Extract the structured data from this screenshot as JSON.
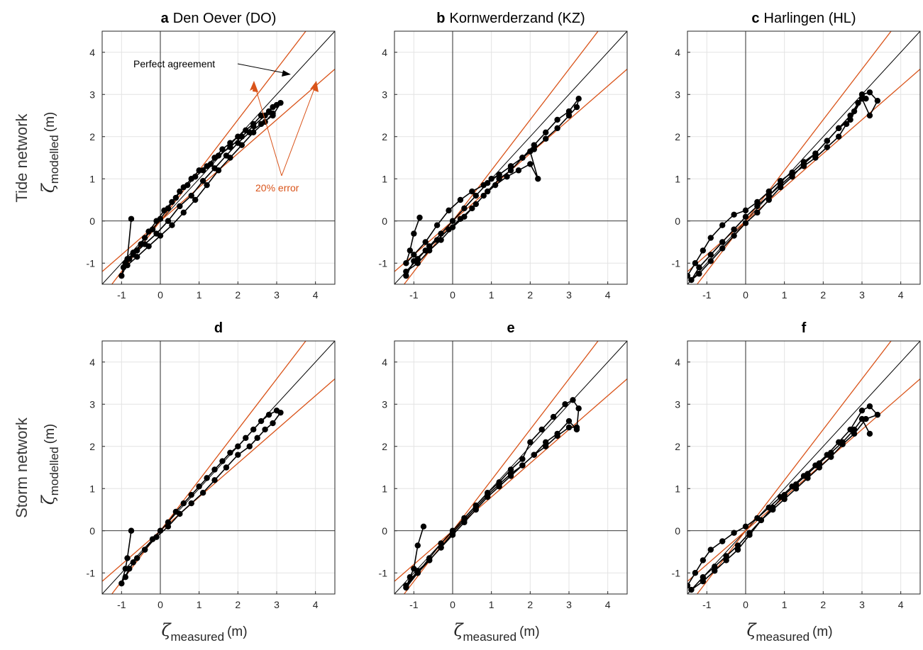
{
  "figure": {
    "row_labels": [
      "Tide network",
      "Storm network"
    ],
    "ylabel": {
      "symbol": "ζ",
      "subscript": "modelled",
      "unit": "(m)"
    },
    "xlabel": {
      "symbol": "ζ",
      "subscript": "measured",
      "unit": "(m)"
    },
    "annotations": {
      "perfect": "Perfect agreement",
      "error": "20% error"
    },
    "colors": {
      "data": "#000000",
      "perfect_line": "#000000",
      "error_lines": "#d95319",
      "grid": "#e3e3e3"
    }
  },
  "chart_data": [
    {
      "type": "line",
      "letter": "a",
      "title": "Den Oever (DO)",
      "row": "Tide network",
      "xlim": [
        -1.5,
        4.5
      ],
      "ylim": [
        -1.5,
        4.5
      ],
      "xticks": [
        -1,
        0,
        1,
        2,
        3,
        4
      ],
      "yticks": [
        -1,
        0,
        1,
        2,
        3,
        4
      ],
      "tick_labels": [
        "-1",
        "0",
        "1",
        "2",
        "3",
        "4"
      ],
      "grid": true,
      "reference_lines": {
        "perfect_slope": 1.0,
        "error_slopes": [
          1.2,
          0.8
        ]
      },
      "series": [
        {
          "x": [
            -0.75,
            -0.85,
            -0.9,
            -0.95,
            -1.0,
            -0.8,
            -0.6,
            -0.4,
            -0.2,
            0.0,
            0.2,
            0.4,
            0.6,
            0.8,
            1.0,
            1.2,
            1.4,
            1.6,
            1.8,
            2.0,
            2.2,
            2.4,
            2.6,
            2.8,
            2.9,
            3.0,
            3.1,
            2.9,
            2.6,
            2.3,
            2.0,
            1.7,
            1.4,
            1.1,
            0.8,
            0.5,
            0.2,
            -0.1,
            -0.4,
            -0.7,
            -0.9,
            -0.7,
            -0.5,
            -0.3,
            -0.1,
            0.1,
            0.3,
            0.5,
            0.7,
            0.9,
            1.1,
            1.3,
            1.5,
            1.8,
            2.1,
            2.4,
            2.7,
            2.9,
            2.7,
            2.4,
            2.1,
            1.8,
            1.5,
            1.2,
            0.9,
            0.6,
            0.3,
            0.0,
            -0.3,
            -0.6,
            -0.85
          ],
          "y": [
            0.05,
            -0.9,
            -1.0,
            -1.1,
            -1.3,
            -0.9,
            -0.7,
            -0.4,
            -0.2,
            0.05,
            0.3,
            0.55,
            0.8,
            1.0,
            1.2,
            1.3,
            1.5,
            1.7,
            1.85,
            2.0,
            2.15,
            2.3,
            2.5,
            2.6,
            2.7,
            2.75,
            2.8,
            2.5,
            2.3,
            2.1,
            1.85,
            1.55,
            1.25,
            0.95,
            0.6,
            0.35,
            0.0,
            -0.3,
            -0.55,
            -0.8,
            -1.0,
            -0.75,
            -0.55,
            -0.25,
            0.0,
            0.25,
            0.45,
            0.7,
            0.85,
            1.05,
            1.2,
            1.35,
            1.55,
            1.75,
            2.0,
            2.25,
            2.5,
            2.55,
            2.35,
            2.1,
            1.8,
            1.5,
            1.2,
            0.85,
            0.5,
            0.2,
            -0.1,
            -0.35,
            -0.6,
            -0.85,
            -1.05
          ]
        }
      ]
    },
    {
      "type": "line",
      "letter": "b",
      "title": "Kornwerderzand (KZ)",
      "row": "Tide network",
      "xlim": [
        -1.5,
        4.5
      ],
      "ylim": [
        -1.5,
        4.5
      ],
      "xticks": [
        -1,
        0,
        1,
        2,
        3,
        4
      ],
      "yticks": [
        -1,
        0,
        1,
        2,
        3,
        4
      ],
      "tick_labels": [
        "-1",
        "0",
        "1",
        "2",
        "3",
        "4"
      ],
      "grid": true,
      "reference_lines": {
        "perfect_slope": 1.0,
        "error_slopes": [
          1.2,
          0.8
        ]
      },
      "series": [
        {
          "x": [
            -0.85,
            -1.0,
            -1.1,
            -1.2,
            -1.0,
            -0.7,
            -0.4,
            -0.1,
            0.2,
            0.5,
            0.8,
            1.0,
            1.2,
            1.5,
            1.8,
            2.1,
            2.4,
            2.7,
            3.0,
            3.2,
            3.25,
            3.0,
            2.7,
            2.4,
            2.1,
            1.8,
            1.5,
            1.2,
            0.9,
            0.6,
            0.3,
            0.0,
            -0.3,
            -0.6,
            -0.9,
            -1.2,
            -0.9,
            -0.6,
            -0.3,
            0.0,
            0.3,
            0.6,
            0.9,
            1.2,
            1.5,
            1.8,
            2.0,
            2.2,
            2.0,
            1.7,
            1.4,
            1.1,
            0.8,
            0.5,
            0.2,
            -0.1,
            -0.4,
            -0.7,
            -1.0,
            -1.2
          ],
          "y": [
            0.08,
            -0.3,
            -0.7,
            -1.0,
            -0.8,
            -0.5,
            -0.1,
            0.25,
            0.5,
            0.7,
            0.85,
            1.0,
            1.1,
            1.3,
            1.5,
            1.7,
            1.95,
            2.2,
            2.5,
            2.7,
            2.9,
            2.6,
            2.4,
            2.1,
            1.8,
            1.5,
            1.3,
            1.1,
            0.9,
            0.6,
            0.3,
            0.0,
            -0.3,
            -0.6,
            -0.9,
            -1.2,
            -1.0,
            -0.7,
            -0.45,
            -0.15,
            0.1,
            0.4,
            0.7,
            1.0,
            1.2,
            1.5,
            1.65,
            1.0,
            1.35,
            1.2,
            1.05,
            0.85,
            0.6,
            0.3,
            0.05,
            -0.2,
            -0.45,
            -0.7,
            -0.95,
            -1.3
          ]
        }
      ]
    },
    {
      "type": "line",
      "letter": "c",
      "title": "Harlingen (HL)",
      "row": "Tide network",
      "xlim": [
        -1.5,
        4.5
      ],
      "ylim": [
        -1.5,
        4.5
      ],
      "xticks": [
        -1,
        0,
        1,
        2,
        3,
        4
      ],
      "yticks": [
        -1,
        0,
        1,
        2,
        3,
        4
      ],
      "tick_labels": [
        "-1",
        "0",
        "1",
        "2",
        "3",
        "4"
      ],
      "grid": true,
      "reference_lines": {
        "perfect_slope": 1.0,
        "error_slopes": [
          1.2,
          0.8
        ]
      },
      "series": [
        {
          "x": [
            -1.5,
            -1.3,
            -1.1,
            -0.9,
            -0.6,
            -0.3,
            0.0,
            0.3,
            0.6,
            0.9,
            1.2,
            1.5,
            1.8,
            2.1,
            2.4,
            2.7,
            2.9,
            3.0,
            3.2,
            3.4,
            3.2,
            3.0,
            2.7,
            2.4,
            2.1,
            1.8,
            1.5,
            1.2,
            0.9,
            0.6,
            0.3,
            0.0,
            -0.3,
            -0.6,
            -0.9,
            -1.2,
            -1.4,
            -1.2,
            -0.9,
            -0.6,
            -0.3,
            0.0,
            0.3,
            0.6,
            0.9,
            1.2,
            1.5,
            1.8,
            2.1,
            2.4,
            2.6,
            2.8,
            3.0,
            3.1
          ],
          "y": [
            -1.3,
            -1.0,
            -0.7,
            -0.4,
            -0.1,
            0.15,
            0.25,
            0.45,
            0.7,
            0.95,
            1.15,
            1.4,
            1.6,
            1.9,
            2.2,
            2.5,
            2.8,
            3.0,
            3.05,
            2.85,
            2.5,
            2.9,
            2.4,
            2.2,
            1.9,
            1.6,
            1.35,
            1.05,
            0.8,
            0.5,
            0.2,
            -0.05,
            -0.35,
            -0.65,
            -0.95,
            -1.25,
            -1.4,
            -1.1,
            -0.8,
            -0.5,
            -0.2,
            0.1,
            0.35,
            0.6,
            0.85,
            1.1,
            1.3,
            1.5,
            1.75,
            2.0,
            2.3,
            2.6,
            2.9,
            2.9
          ]
        }
      ]
    },
    {
      "type": "line",
      "letter": "d",
      "title": "",
      "row": "Storm network",
      "xlim": [
        -1.5,
        4.5
      ],
      "ylim": [
        -1.5,
        4.5
      ],
      "xticks": [
        -1,
        0,
        1,
        2,
        3,
        4
      ],
      "yticks": [
        -1,
        0,
        1,
        2,
        3,
        4
      ],
      "tick_labels": [
        "-1",
        "0",
        "1",
        "2",
        "3",
        "4"
      ],
      "grid": true,
      "reference_lines": {
        "perfect_slope": 1.0,
        "error_slopes": [
          1.2,
          0.8
        ]
      },
      "series": [
        {
          "x": [
            -0.75,
            -0.85,
            -0.9,
            -1.0,
            -0.8,
            -0.6,
            -0.4,
            -0.2,
            0.0,
            0.2,
            0.4,
            0.6,
            0.8,
            1.0,
            1.2,
            1.4,
            1.6,
            1.8,
            2.0,
            2.2,
            2.4,
            2.6,
            2.8,
            3.0,
            3.1,
            2.9,
            2.7,
            2.5,
            2.3,
            2.0,
            1.7,
            1.4,
            1.1,
            0.8,
            0.5,
            0.2,
            -0.1,
            -0.4,
            -0.7,
            -0.9
          ],
          "y": [
            0.0,
            -0.65,
            -0.9,
            -1.25,
            -0.9,
            -0.65,
            -0.45,
            -0.2,
            0.0,
            0.2,
            0.45,
            0.65,
            0.85,
            1.05,
            1.25,
            1.45,
            1.65,
            1.85,
            2.0,
            2.2,
            2.4,
            2.6,
            2.75,
            2.85,
            2.8,
            2.55,
            2.4,
            2.2,
            2.0,
            1.8,
            1.5,
            1.2,
            0.9,
            0.65,
            0.4,
            0.1,
            -0.15,
            -0.45,
            -0.75,
            -1.1
          ]
        }
      ]
    },
    {
      "type": "line",
      "letter": "e",
      "title": "",
      "row": "Storm network",
      "xlim": [
        -1.5,
        4.5
      ],
      "ylim": [
        -1.5,
        4.5
      ],
      "xticks": [
        -1,
        0,
        1,
        2,
        3,
        4
      ],
      "yticks": [
        -1,
        0,
        1,
        2,
        3,
        4
      ],
      "tick_labels": [
        "-1",
        "0",
        "1",
        "2",
        "3",
        "4"
      ],
      "grid": true,
      "reference_lines": {
        "perfect_slope": 1.0,
        "error_slopes": [
          1.2,
          0.8
        ]
      },
      "series": [
        {
          "x": [
            -0.75,
            -0.9,
            -1.0,
            -1.1,
            -1.2,
            -0.9,
            -0.6,
            -0.3,
            0.0,
            0.3,
            0.6,
            0.9,
            1.2,
            1.5,
            1.8,
            2.0,
            2.3,
            2.6,
            2.9,
            3.1,
            3.25,
            3.2,
            3.0,
            2.7,
            2.4,
            2.1,
            1.8,
            1.5,
            1.2,
            0.9,
            0.6,
            0.3,
            0.0,
            -0.3,
            -0.6,
            -0.9,
            -1.2,
            -0.9,
            -0.6,
            -0.3,
            0.0,
            0.3,
            0.6,
            0.9,
            1.2,
            1.5,
            1.8,
            2.1,
            2.4,
            2.7,
            3.0,
            3.2
          ],
          "y": [
            0.1,
            -0.35,
            -0.9,
            -1.1,
            -1.35,
            -1.0,
            -0.65,
            -0.3,
            0.0,
            0.3,
            0.6,
            0.9,
            1.15,
            1.45,
            1.7,
            2.1,
            2.4,
            2.7,
            3.0,
            3.1,
            2.9,
            2.4,
            2.6,
            2.3,
            2.1,
            1.8,
            1.55,
            1.3,
            1.05,
            0.8,
            0.5,
            0.2,
            -0.1,
            -0.4,
            -0.7,
            -1.0,
            -1.3,
            -0.95,
            -0.7,
            -0.4,
            -0.05,
            0.25,
            0.55,
            0.85,
            1.1,
            1.35,
            1.55,
            1.8,
            2.0,
            2.25,
            2.45,
            2.45
          ]
        }
      ]
    },
    {
      "type": "line",
      "letter": "f",
      "title": "",
      "row": "Storm network",
      "xlim": [
        -1.5,
        4.5
      ],
      "ylim": [
        -1.5,
        4.5
      ],
      "xticks": [
        -1,
        0,
        1,
        2,
        3,
        4
      ],
      "yticks": [
        -1,
        0,
        1,
        2,
        3,
        4
      ],
      "tick_labels": [
        "-1",
        "0",
        "1",
        "2",
        "3",
        "4"
      ],
      "grid": true,
      "reference_lines": {
        "perfect_slope": 1.0,
        "error_slopes": [
          1.2,
          0.8
        ]
      },
      "series": [
        {
          "x": [
            -1.5,
            -1.3,
            -1.1,
            -0.9,
            -0.6,
            -0.3,
            0.0,
            0.3,
            0.6,
            0.9,
            1.2,
            1.5,
            1.8,
            2.1,
            2.4,
            2.7,
            3.0,
            3.2,
            3.4,
            3.1,
            2.8,
            2.5,
            2.2,
            1.9,
            1.6,
            1.3,
            1.0,
            0.7,
            0.4,
            0.1,
            -0.2,
            -0.5,
            -0.8,
            -1.1,
            -1.4,
            -1.1,
            -0.8,
            -0.5,
            -0.2,
            0.1,
            0.4,
            0.7,
            1.0,
            1.3,
            1.6,
            1.9,
            2.2,
            2.5,
            2.8,
            3.0,
            3.2
          ],
          "y": [
            -1.3,
            -1.0,
            -0.7,
            -0.45,
            -0.25,
            -0.05,
            0.1,
            0.3,
            0.55,
            0.8,
            1.05,
            1.3,
            1.55,
            1.8,
            2.1,
            2.4,
            2.85,
            2.95,
            2.75,
            2.65,
            2.3,
            2.05,
            1.75,
            1.5,
            1.25,
            1.0,
            0.75,
            0.5,
            0.25,
            -0.05,
            -0.35,
            -0.6,
            -0.85,
            -1.1,
            -1.4,
            -1.2,
            -0.95,
            -0.7,
            -0.45,
            -0.1,
            0.25,
            0.55,
            0.85,
            1.1,
            1.35,
            1.6,
            1.85,
            2.1,
            2.4,
            2.65,
            2.3
          ]
        }
      ]
    }
  ]
}
